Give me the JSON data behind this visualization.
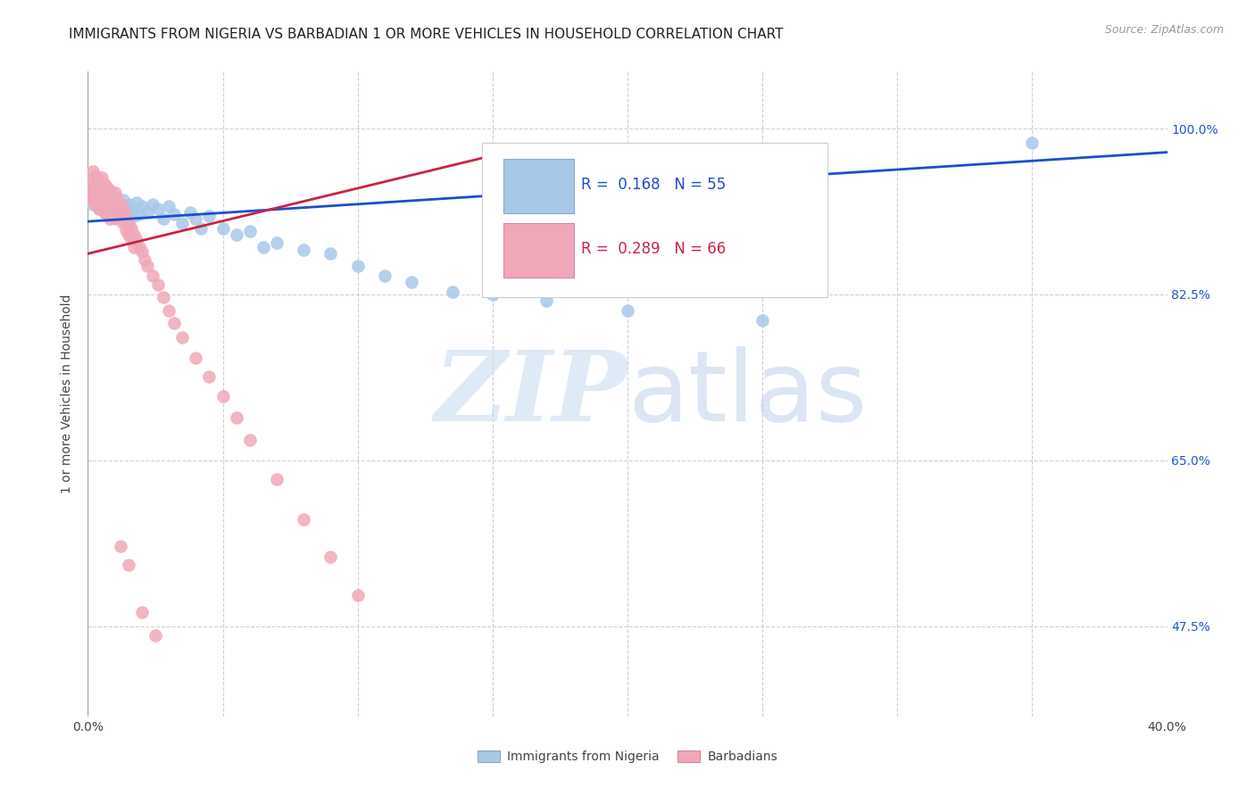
{
  "title": "IMMIGRANTS FROM NIGERIA VS BARBADIAN 1 OR MORE VEHICLES IN HOUSEHOLD CORRELATION CHART",
  "source": "Source: ZipAtlas.com",
  "ylabel": "1 or more Vehicles in Household",
  "legend_nigeria": "R =  0.168   N = 55",
  "legend_barbadian": "R =  0.289   N = 66",
  "legend_label_nigeria": "Immigrants from Nigeria",
  "legend_label_barbadian": "Barbadians",
  "nigeria_color": "#a8c8e8",
  "barbadian_color": "#f0a8b8",
  "nigeria_line_color": "#1a4fcc",
  "barbadian_line_color": "#cc2244",
  "nigeria_scatter_x": [
    0.001,
    0.002,
    0.002,
    0.003,
    0.003,
    0.004,
    0.004,
    0.005,
    0.005,
    0.006,
    0.006,
    0.007,
    0.007,
    0.008,
    0.008,
    0.009,
    0.01,
    0.01,
    0.011,
    0.012,
    0.013,
    0.014,
    0.015,
    0.016,
    0.017,
    0.018,
    0.019,
    0.02,
    0.022,
    0.024,
    0.026,
    0.028,
    0.03,
    0.032,
    0.035,
    0.038,
    0.04,
    0.042,
    0.045,
    0.05,
    0.055,
    0.06,
    0.065,
    0.07,
    0.08,
    0.09,
    0.1,
    0.11,
    0.12,
    0.135,
    0.15,
    0.17,
    0.2,
    0.25,
    0.35
  ],
  "nigeria_scatter_y": [
    0.93,
    0.935,
    0.92,
    0.94,
    0.925,
    0.928,
    0.915,
    0.938,
    0.922,
    0.93,
    0.918,
    0.935,
    0.91,
    0.925,
    0.932,
    0.92,
    0.928,
    0.915,
    0.922,
    0.918,
    0.925,
    0.912,
    0.92,
    0.915,
    0.908,
    0.922,
    0.91,
    0.918,
    0.912,
    0.92,
    0.915,
    0.905,
    0.918,
    0.91,
    0.9,
    0.912,
    0.905,
    0.895,
    0.908,
    0.895,
    0.888,
    0.892,
    0.875,
    0.88,
    0.872,
    0.868,
    0.855,
    0.845,
    0.838,
    0.828,
    0.825,
    0.818,
    0.808,
    0.798,
    0.985
  ],
  "barbadian_scatter_x": [
    0.001,
    0.001,
    0.002,
    0.002,
    0.002,
    0.003,
    0.003,
    0.003,
    0.004,
    0.004,
    0.004,
    0.005,
    0.005,
    0.005,
    0.006,
    0.006,
    0.006,
    0.007,
    0.007,
    0.007,
    0.008,
    0.008,
    0.008,
    0.009,
    0.009,
    0.01,
    0.01,
    0.01,
    0.011,
    0.011,
    0.012,
    0.012,
    0.013,
    0.013,
    0.014,
    0.014,
    0.015,
    0.015,
    0.016,
    0.016,
    0.017,
    0.017,
    0.018,
    0.019,
    0.02,
    0.021,
    0.022,
    0.024,
    0.026,
    0.028,
    0.03,
    0.032,
    0.035,
    0.04,
    0.045,
    0.05,
    0.055,
    0.06,
    0.07,
    0.08,
    0.09,
    0.1,
    0.015,
    0.012,
    0.02,
    0.025
  ],
  "barbadian_scatter_y": [
    0.945,
    0.93,
    0.955,
    0.94,
    0.925,
    0.95,
    0.935,
    0.92,
    0.945,
    0.93,
    0.915,
    0.948,
    0.933,
    0.918,
    0.942,
    0.927,
    0.912,
    0.938,
    0.922,
    0.908,
    0.935,
    0.92,
    0.905,
    0.928,
    0.915,
    0.932,
    0.918,
    0.905,
    0.925,
    0.91,
    0.92,
    0.905,
    0.915,
    0.9,
    0.908,
    0.893,
    0.9,
    0.888,
    0.895,
    0.882,
    0.888,
    0.875,
    0.882,
    0.875,
    0.87,
    0.862,
    0.855,
    0.845,
    0.835,
    0.822,
    0.808,
    0.795,
    0.78,
    0.758,
    0.738,
    0.718,
    0.695,
    0.672,
    0.63,
    0.588,
    0.548,
    0.508,
    0.54,
    0.56,
    0.49,
    0.465
  ],
  "nigeria_trend_x": [
    0.0,
    0.4
  ],
  "nigeria_trend_y": [
    0.902,
    0.975
  ],
  "barbadian_trend_x": [
    0.0,
    0.155
  ],
  "barbadian_trend_y": [
    0.868,
    0.975
  ],
  "xlim": [
    0.0,
    0.4
  ],
  "ylim": [
    0.38,
    1.06
  ],
  "ytick_vals": [
    1.0,
    0.825,
    0.65,
    0.475
  ],
  "ytick_labels": [
    "100.0%",
    "82.5%",
    "65.0%",
    "47.5%"
  ],
  "xtick_positions": [
    0.0,
    0.05,
    0.1,
    0.15,
    0.2,
    0.25,
    0.3,
    0.35,
    0.4
  ],
  "watermark_zip": "ZIP",
  "watermark_atlas": "atlas",
  "background_color": "#ffffff",
  "grid_color": "#d0d0d0",
  "title_fontsize": 11,
  "axis_label_fontsize": 10,
  "tick_fontsize": 10,
  "source_fontsize": 9
}
